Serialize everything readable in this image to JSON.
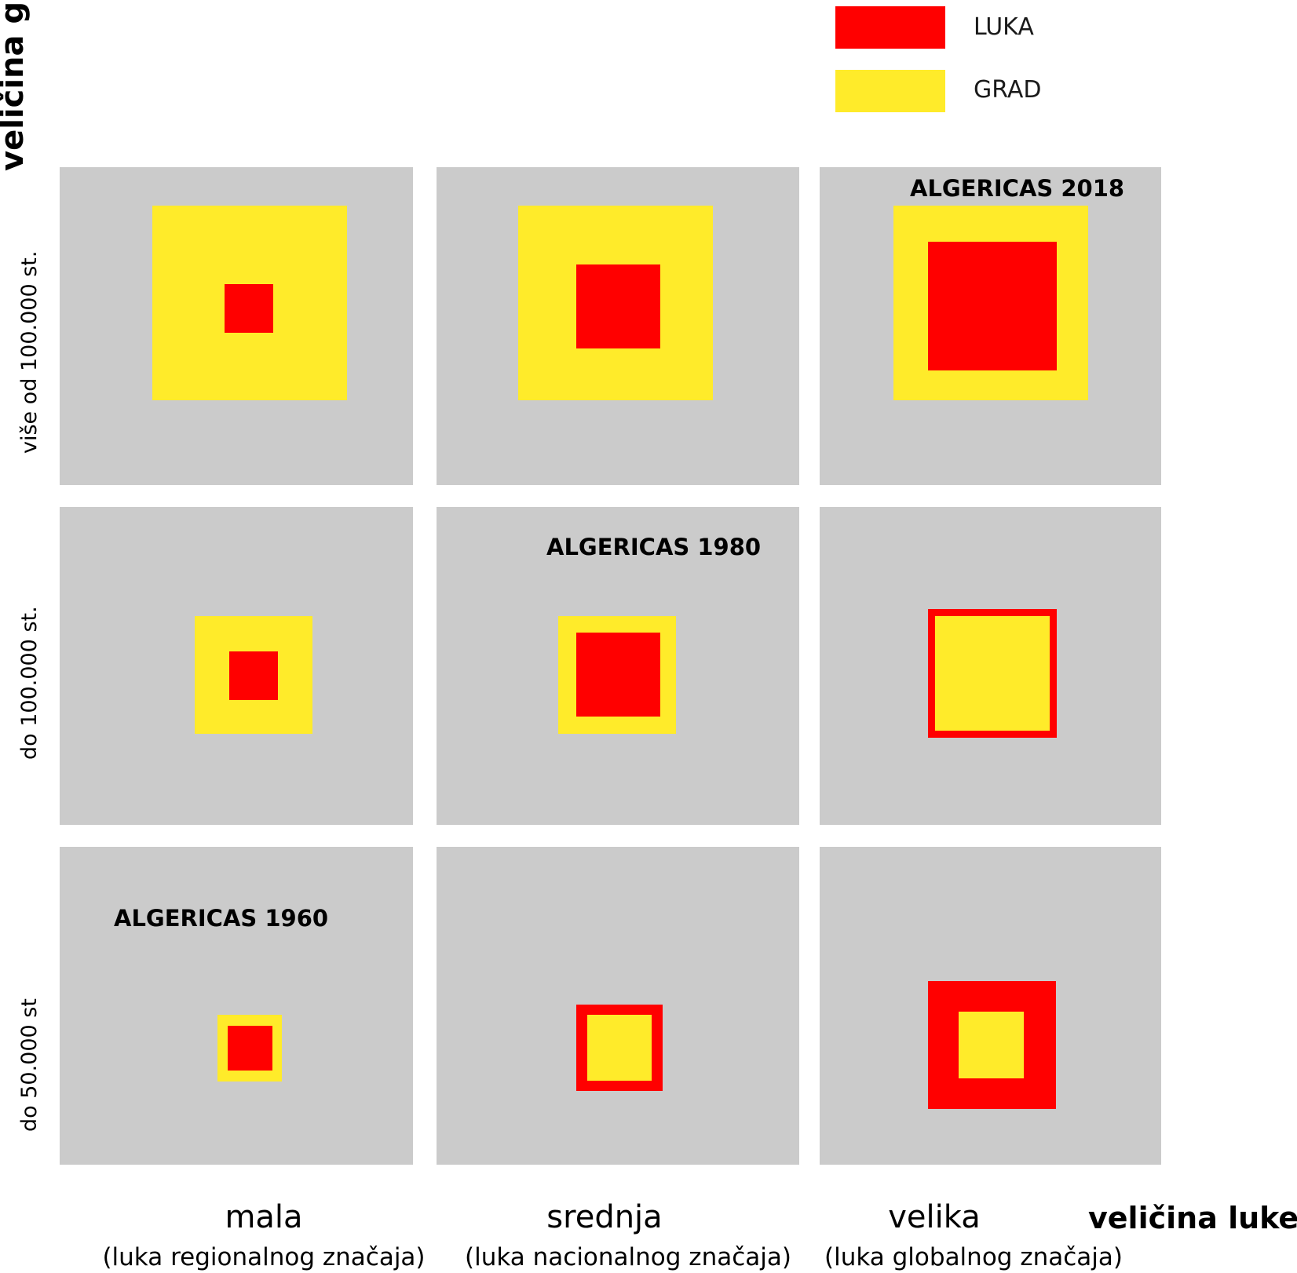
{
  "colors": {
    "port": "#ff0000",
    "city": "#ffeb2a",
    "cell": "#cbcbcb"
  },
  "legend": [
    {
      "label": "LUKA",
      "color": "#ff0000"
    },
    {
      "label": "GRAD",
      "color": "#ffeb2a"
    }
  ],
  "axis_y_title": "veličina grada",
  "axis_x_title": "veličina luke",
  "rows": [
    {
      "label": "više od 100.000 st."
    },
    {
      "label": "do 100.000 st."
    },
    {
      "label": "do 50.000 st"
    }
  ],
  "columns": [
    {
      "label": "mala",
      "sublabel": "(luka regionalnog značaja)"
    },
    {
      "label": "srednja",
      "sublabel": "(luka nacionalnog značaja)"
    },
    {
      "label": "velika",
      "sublabel": "(luka globalnog značaja)"
    }
  ],
  "cell_labels": {
    "top_right": "ALGERICAS 2018",
    "middle_center": "ALGERICAS 1980",
    "bottom_left": "ALGERICAS 1960"
  }
}
